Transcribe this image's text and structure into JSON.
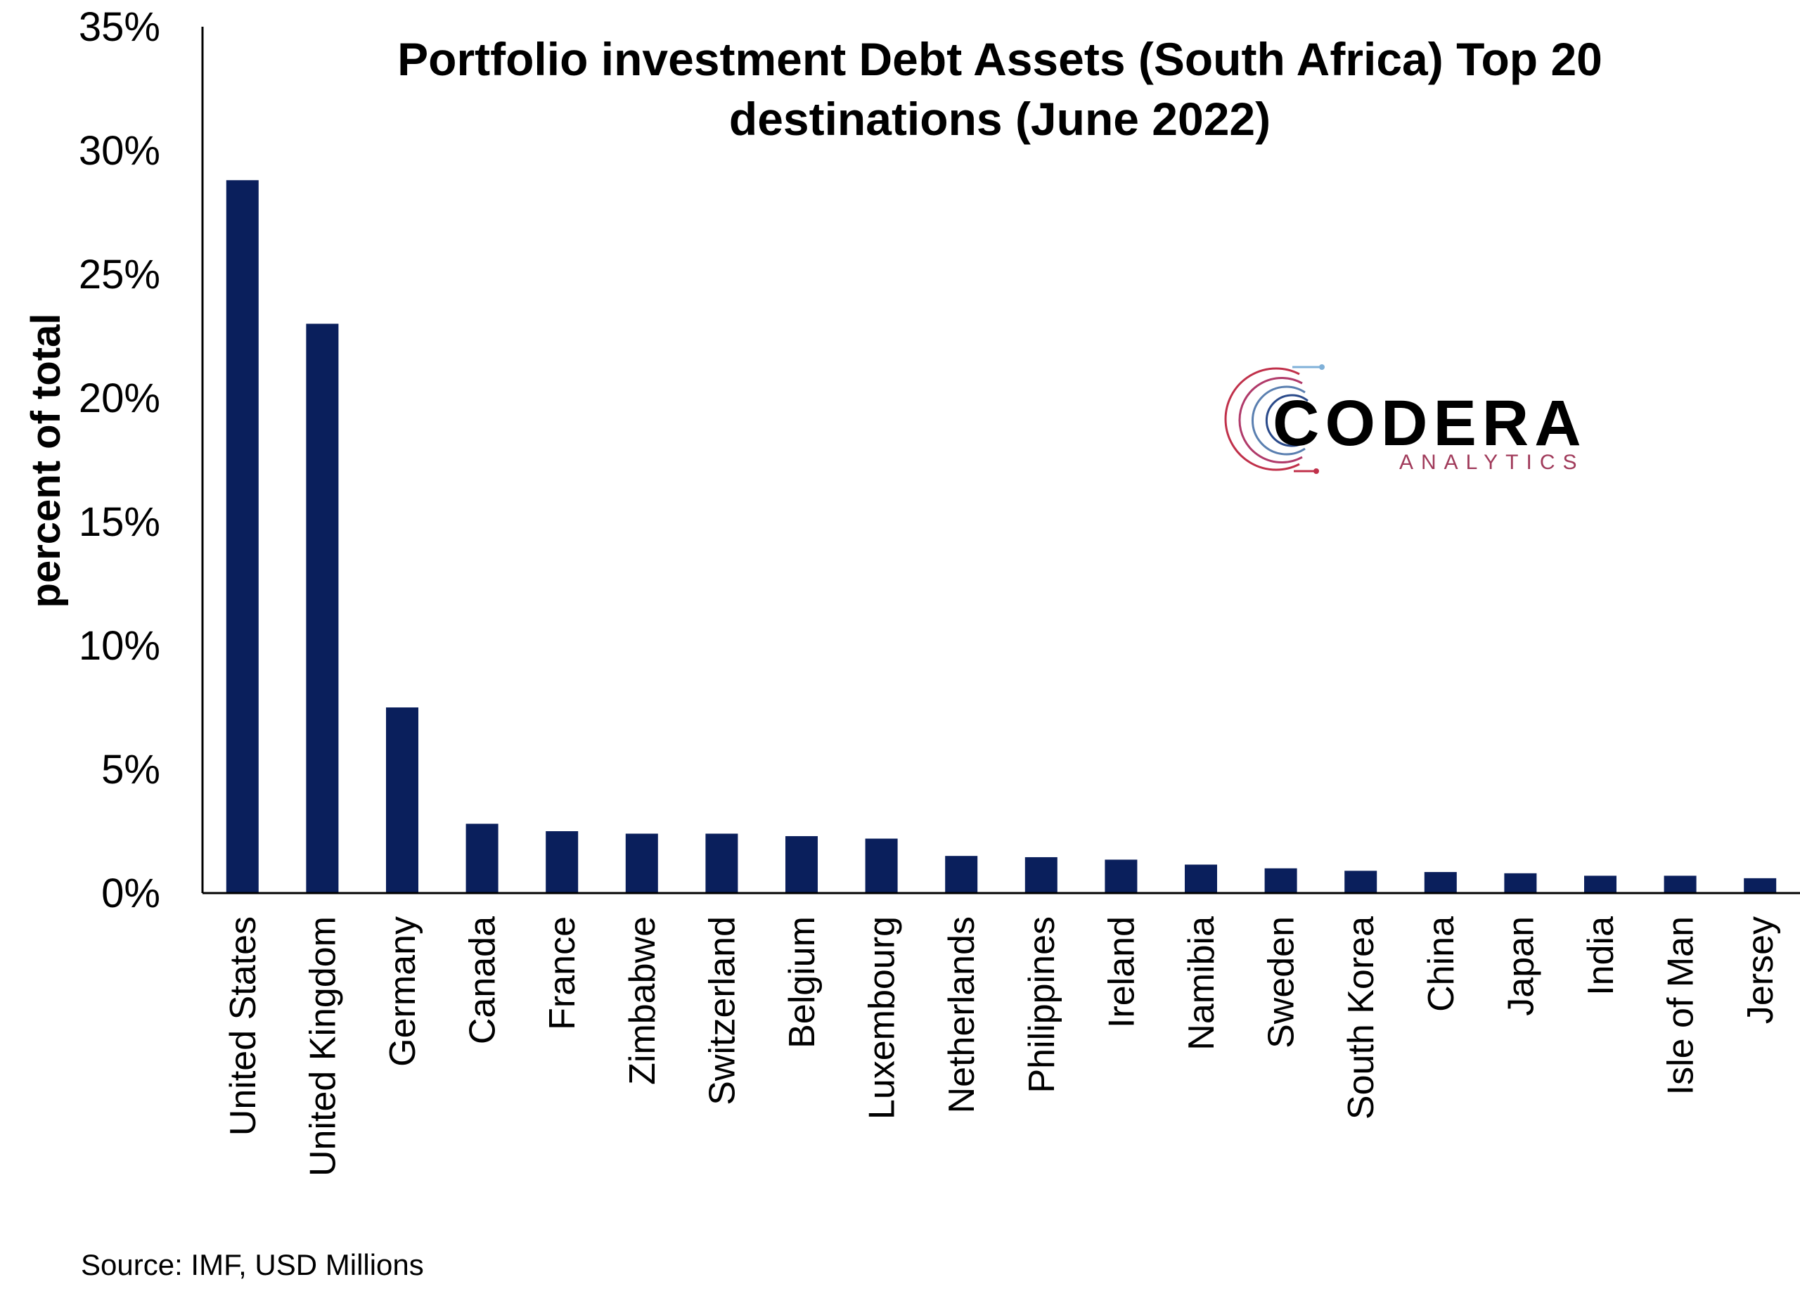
{
  "chart_data": {
    "type": "bar",
    "title_line1": "Portfolio investment Debt Assets (South Africa) Top 20",
    "title_line2": "destinations (June 2022)",
    "ylabel": "percent of total",
    "ylim": [
      0,
      35
    ],
    "yticks": [
      0,
      5,
      10,
      15,
      20,
      25,
      30,
      35
    ],
    "ytick_labels": [
      "0%",
      "5%",
      "10%",
      "15%",
      "20%",
      "25%",
      "30%",
      "35%"
    ],
    "categories": [
      "United States",
      "United Kingdom",
      "Germany",
      "Canada",
      "France",
      "Zimbabwe",
      "Switzerland",
      "Belgium",
      "Luxembourg",
      "Netherlands",
      "Philippines",
      "Ireland",
      "Namibia",
      "Sweden",
      "South Korea",
      "China",
      "Japan",
      "India",
      "Isle of Man",
      "Jersey"
    ],
    "values": [
      28.8,
      23.0,
      7.5,
      2.8,
      2.5,
      2.4,
      2.4,
      2.3,
      2.2,
      1.5,
      1.45,
      1.35,
      1.15,
      1.0,
      0.9,
      0.85,
      0.8,
      0.7,
      0.7,
      0.6
    ],
    "bar_color": "#0a1f5c",
    "grid": false,
    "legend": "none"
  },
  "logo": {
    "main": "CODERA",
    "sub": "ANALYTICS"
  },
  "source": "Source: IMF, USD Millions"
}
